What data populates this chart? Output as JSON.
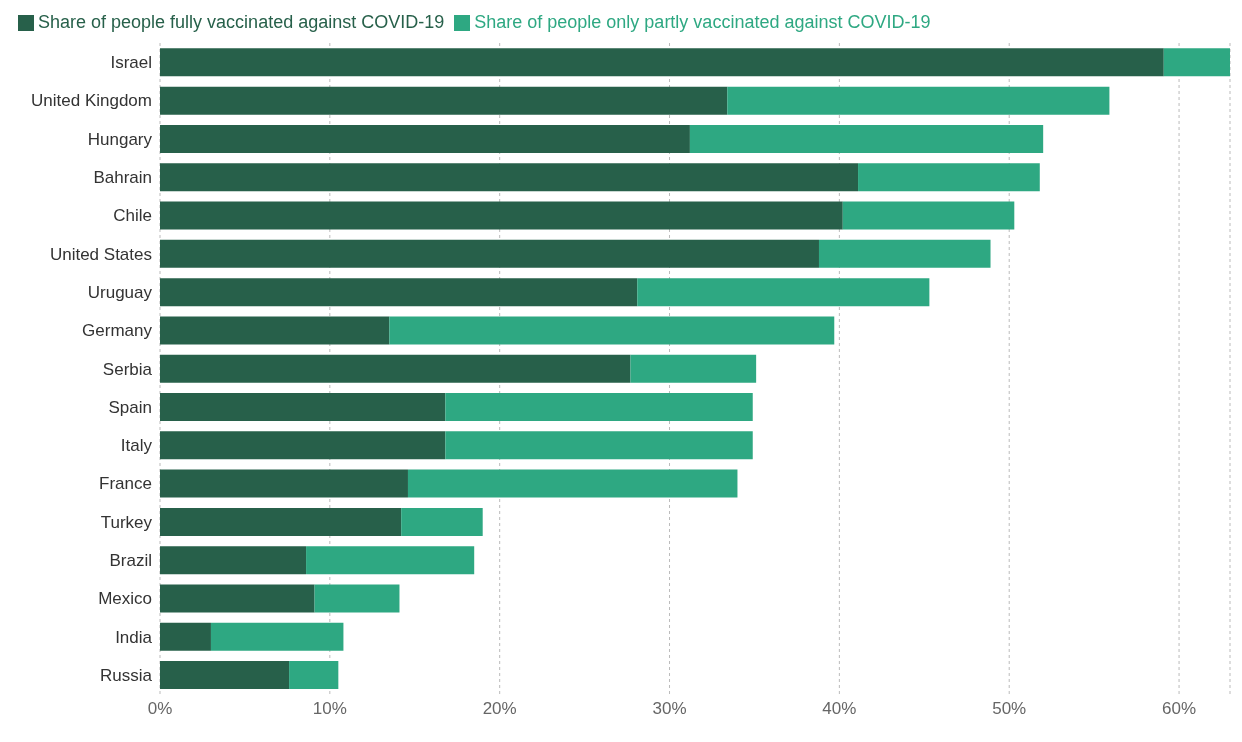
{
  "chart_data": {
    "type": "bar",
    "orientation": "horizontal",
    "stacked": true,
    "categories": [
      "Israel",
      "United Kingdom",
      "Hungary",
      "Bahrain",
      "Chile",
      "United States",
      "Uruguay",
      "Germany",
      "Serbia",
      "Spain",
      "Italy",
      "France",
      "Turkey",
      "Brazil",
      "Mexico",
      "India",
      "Russia"
    ],
    "series": [
      {
        "name": "Share of people fully vaccinated against COVID-19",
        "color": "#27604a",
        "values": [
          59.1,
          33.4,
          31.2,
          41.1,
          40.2,
          38.8,
          28.1,
          13.5,
          27.7,
          16.8,
          16.8,
          14.6,
          14.2,
          8.6,
          9.1,
          3.0,
          7.6
        ]
      },
      {
        "name": "Share of people only partly vaccinated against COVID-19",
        "color": "#2ea882",
        "values": [
          3.9,
          22.5,
          20.8,
          10.7,
          10.1,
          10.1,
          17.2,
          26.2,
          7.4,
          18.1,
          18.1,
          19.4,
          4.8,
          9.9,
          5.0,
          7.8,
          2.9
        ]
      }
    ],
    "xlim": [
      0,
      63
    ],
    "xticks": [
      {
        "value": 0,
        "label": "0%"
      },
      {
        "value": 10,
        "label": "10%"
      },
      {
        "value": 20,
        "label": "20%"
      },
      {
        "value": 30,
        "label": "30%"
      },
      {
        "value": 40,
        "label": "40%"
      },
      {
        "value": 50,
        "label": "50%"
      },
      {
        "value": 60,
        "label": "60%"
      }
    ],
    "grid": "x",
    "legend": "top left"
  }
}
